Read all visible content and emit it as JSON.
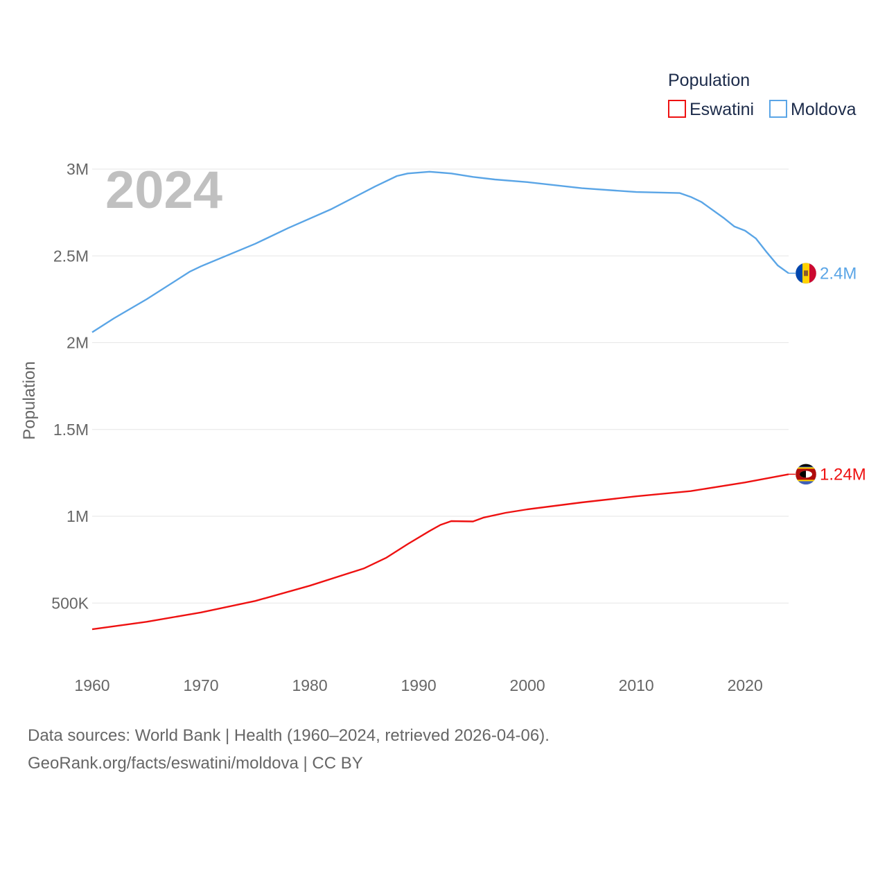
{
  "chart_data": {
    "type": "line",
    "year_label": "2024",
    "ylabel": "Population",
    "xlabel": "",
    "xlim": [
      1960,
      2024
    ],
    "ylim": [
      200000,
      3000000
    ],
    "x_ticks": [
      1960,
      1970,
      1980,
      1990,
      2000,
      2010,
      2020
    ],
    "x_tick_labels": [
      "1960",
      "1970",
      "1980",
      "1990",
      "2000",
      "2010",
      "2020"
    ],
    "y_ticks": [
      500000,
      1000000,
      1500000,
      2000000,
      2500000,
      3000000
    ],
    "y_tick_labels": [
      "500K",
      "1M",
      "1.5M",
      "2M",
      "2.5M",
      "3M"
    ],
    "grid": true,
    "legend": {
      "title": "Population",
      "placement": "top-right",
      "entries": [
        "Eswatini",
        "Moldova"
      ]
    },
    "series": [
      {
        "name": "Eswatini",
        "color": "#ee1111",
        "end_label": "1.24M",
        "flag_icon": "eswatini-flag-icon",
        "points": [
          [
            1960,
            349000
          ],
          [
            1965,
            392000
          ],
          [
            1970,
            446000
          ],
          [
            1975,
            512000
          ],
          [
            1980,
            600000
          ],
          [
            1985,
            700000
          ],
          [
            1987,
            760000
          ],
          [
            1989,
            840000
          ],
          [
            1991,
            915000
          ],
          [
            1992,
            950000
          ],
          [
            1993,
            972000
          ],
          [
            1995,
            970000
          ],
          [
            1996,
            993000
          ],
          [
            1998,
            1020000
          ],
          [
            2000,
            1040000
          ],
          [
            2005,
            1080000
          ],
          [
            2010,
            1115000
          ],
          [
            2015,
            1145000
          ],
          [
            2020,
            1195000
          ],
          [
            2024,
            1242000
          ]
        ]
      },
      {
        "name": "Moldova",
        "color": "#5aa5e6",
        "end_label": "2.4M",
        "flag_icon": "moldova-flag-icon",
        "points": [
          [
            1960,
            2060000
          ],
          [
            1962,
            2140000
          ],
          [
            1965,
            2250000
          ],
          [
            1969,
            2410000
          ],
          [
            1970,
            2440000
          ],
          [
            1975,
            2570000
          ],
          [
            1978,
            2660000
          ],
          [
            1982,
            2770000
          ],
          [
            1986,
            2900000
          ],
          [
            1988,
            2960000
          ],
          [
            1989,
            2975000
          ],
          [
            1991,
            2985000
          ],
          [
            1993,
            2975000
          ],
          [
            1995,
            2955000
          ],
          [
            1997,
            2940000
          ],
          [
            2000,
            2925000
          ],
          [
            2005,
            2890000
          ],
          [
            2010,
            2868000
          ],
          [
            2014,
            2862000
          ],
          [
            2015,
            2840000
          ],
          [
            2016,
            2810000
          ],
          [
            2018,
            2720000
          ],
          [
            2019,
            2670000
          ],
          [
            2020,
            2645000
          ],
          [
            2021,
            2600000
          ],
          [
            2022,
            2520000
          ],
          [
            2023,
            2445000
          ],
          [
            2024,
            2400000
          ]
        ]
      }
    ]
  },
  "footer": {
    "source_line": "Data sources: World Bank | Health (1960–2024, retrieved 2026-04-06).",
    "credit_line": "GeoRank.org/facts/eswatini/moldova | CC BY"
  }
}
